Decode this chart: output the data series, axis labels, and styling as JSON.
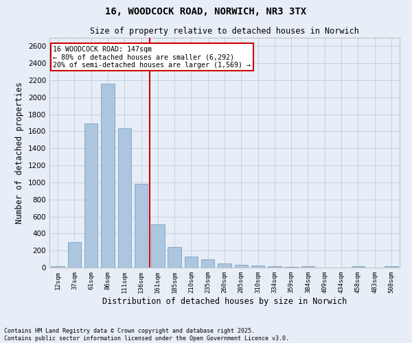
{
  "title_line1": "16, WOODCOCK ROAD, NORWICH, NR3 3TX",
  "title_line2": "Size of property relative to detached houses in Norwich",
  "xlabel": "Distribution of detached houses by size in Norwich",
  "ylabel": "Number of detached properties",
  "categories": [
    "12sqm",
    "37sqm",
    "61sqm",
    "86sqm",
    "111sqm",
    "136sqm",
    "161sqm",
    "185sqm",
    "210sqm",
    "235sqm",
    "260sqm",
    "285sqm",
    "310sqm",
    "334sqm",
    "359sqm",
    "384sqm",
    "409sqm",
    "434sqm",
    "458sqm",
    "483sqm",
    "508sqm"
  ],
  "values": [
    20,
    295,
    1690,
    2160,
    1635,
    980,
    510,
    245,
    130,
    100,
    47,
    30,
    25,
    18,
    5,
    20,
    4,
    0,
    18,
    4,
    20
  ],
  "bar_color": "#adc6e0",
  "bar_edge_color": "#6699bb",
  "vline_color": "#cc0000",
  "annotation_box_text": "16 WOODCOCK ROAD: 147sqm\n← 80% of detached houses are smaller (6,292)\n20% of semi-detached houses are larger (1,569) →",
  "annotation_box_color": "#cc0000",
  "ylim": [
    0,
    2700
  ],
  "yticks": [
    0,
    200,
    400,
    600,
    800,
    1000,
    1200,
    1400,
    1600,
    1800,
    2000,
    2200,
    2400,
    2600
  ],
  "grid_color": "#c0cbdb",
  "bg_color": "#e8eef7",
  "footnote": "Contains HM Land Registry data © Crown copyright and database right 2025.\nContains public sector information licensed under the Open Government Licence v3.0."
}
